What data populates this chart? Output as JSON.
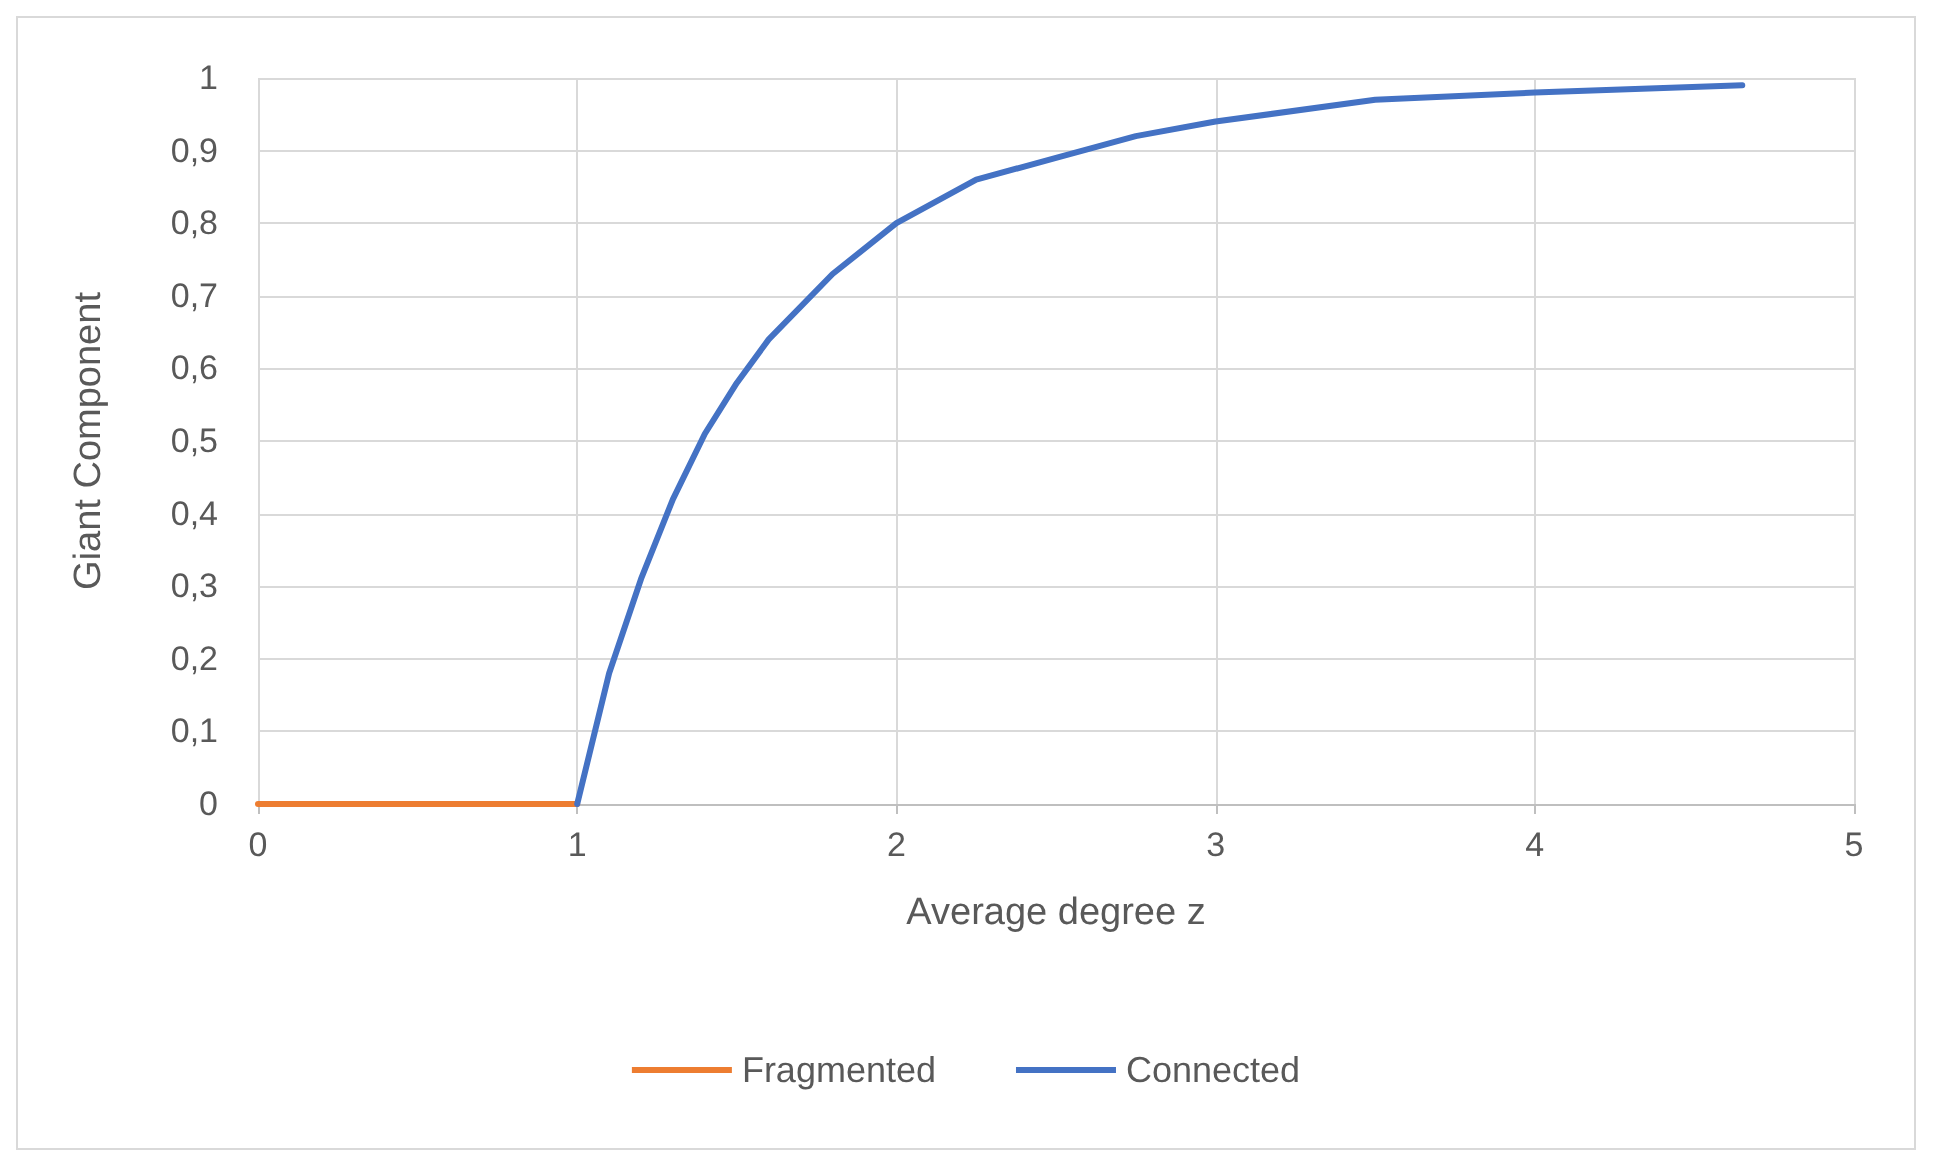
{
  "chart_data": {
    "type": "line",
    "xlabel": "Average degree z",
    "ylabel": "Giant Component",
    "xlim": [
      0,
      5
    ],
    "xticks": [
      0,
      1,
      2,
      3,
      4,
      5
    ],
    "ylim": [
      0,
      1
    ],
    "yticks": [
      0,
      {
        "value": 0.1,
        "label": "0,1"
      },
      {
        "value": 0.2,
        "label": "0,2"
      },
      {
        "value": 0.3,
        "label": "0,3"
      },
      {
        "value": 0.4,
        "label": "0,4"
      },
      {
        "value": 0.5,
        "label": "0,5"
      },
      {
        "value": 0.6,
        "label": "0,6"
      },
      {
        "value": 0.7,
        "label": "0,7"
      },
      {
        "value": 0.8,
        "label": "0,8"
      },
      {
        "value": 0.9,
        "label": "0,9"
      },
      1
    ],
    "grid": true,
    "legend": "bottom",
    "marker": "none",
    "line_style": "solid",
    "series": [
      {
        "name": "Fragmented",
        "color": "#ed7d31",
        "x": [
          0,
          1
        ],
        "values": [
          0,
          0
        ]
      },
      {
        "name": "Connected",
        "color": "#4472c4",
        "x": [
          1,
          1.1,
          1.2,
          1.3,
          1.4,
          1.5,
          1.6,
          1.8,
          2,
          2.25,
          2.5,
          2.75,
          3,
          3.5,
          4,
          4.65
        ],
        "values": [
          0,
          0.18,
          0.31,
          0.42,
          0.51,
          0.58,
          0.64,
          0.73,
          0.8,
          0.86,
          0.89,
          0.92,
          0.94,
          0.97,
          0.98,
          0.99
        ]
      }
    ]
  }
}
